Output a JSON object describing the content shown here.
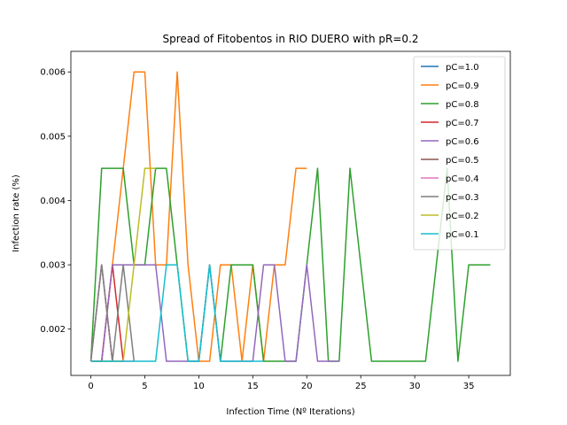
{
  "chart_data": {
    "type": "line",
    "title": "Spread of Fitobentos in RIO DUERO with pR=0.2",
    "xlabel": "Infection Time (Nº Iterations)",
    "ylabel": "Infection rate (%)",
    "xlim": [
      -1.85,
      38.85
    ],
    "ylim": [
      0.00128,
      0.00632
    ],
    "xticks": [
      0,
      5,
      10,
      15,
      20,
      25,
      30,
      35
    ],
    "yticks": [
      0.002,
      0.003,
      0.004,
      0.005,
      0.006
    ],
    "xtick_labels": [
      "0",
      "5",
      "10",
      "15",
      "20",
      "25",
      "30",
      "35"
    ],
    "ytick_labels": [
      "0.002",
      "0.003",
      "0.004",
      "0.005",
      "0.006"
    ],
    "grid": false,
    "legend_position": "upper right",
    "series": [
      {
        "name": "pC=1.0",
        "color": "#1f77b4",
        "x": [
          0,
          1,
          2,
          3
        ],
        "y": [
          0.0015,
          0.0015,
          0.0015,
          0.0015
        ]
      },
      {
        "name": "pC=0.9",
        "color": "#ff7f0e",
        "x": [
          0,
          1,
          2,
          3,
          4,
          5,
          6,
          7,
          8,
          9,
          10,
          11,
          12,
          13,
          14,
          15,
          16,
          17,
          18,
          19,
          20
        ],
        "y": [
          0.0015,
          0.0015,
          0.003,
          0.0045,
          0.006,
          0.006,
          0.003,
          0.003,
          0.006,
          0.003,
          0.0015,
          0.0015,
          0.003,
          0.003,
          0.0015,
          0.003,
          0.0015,
          0.003,
          0.003,
          0.0045,
          0.0045
        ]
      },
      {
        "name": "pC=0.8",
        "color": "#2ca02c",
        "x": [
          0,
          1,
          2,
          3,
          4,
          5,
          6,
          7,
          8,
          9,
          10,
          11,
          12,
          13,
          14,
          15,
          16,
          17,
          18,
          19,
          20,
          21,
          22,
          23,
          24,
          25,
          26,
          27,
          28,
          29,
          30,
          31,
          32,
          33,
          34,
          35,
          36,
          37
        ],
        "y": [
          0.0015,
          0.0045,
          0.0045,
          0.0045,
          0.003,
          0.003,
          0.0045,
          0.0045,
          0.003,
          0.0015,
          0.0015,
          0.003,
          0.0015,
          0.003,
          0.003,
          0.003,
          0.0015,
          0.0015,
          0.0015,
          0.0015,
          0.003,
          0.0045,
          0.0015,
          0.0015,
          0.0045,
          0.003,
          0.0015,
          0.0015,
          0.0015,
          0.0015,
          0.0015,
          0.0015,
          0.003,
          0.0045,
          0.0015,
          0.003,
          0.003,
          0.003
        ]
      },
      {
        "name": "pC=0.7",
        "color": "#d62728",
        "x": [
          0,
          1,
          2,
          3
        ],
        "y": [
          0.0015,
          0.0015,
          0.003,
          0.0015
        ]
      },
      {
        "name": "pC=0.6",
        "color": "#9467bd",
        "x": [
          0,
          1,
          2,
          3,
          4,
          5,
          6,
          7,
          8,
          9,
          10,
          11,
          12,
          13,
          14,
          15,
          16,
          17,
          18,
          19,
          20,
          21,
          22,
          23
        ],
        "y": [
          0.0015,
          0.0015,
          0.003,
          0.003,
          0.003,
          0.003,
          0.003,
          0.0015,
          0.0015,
          0.0015,
          0.0015,
          0.003,
          0.0015,
          0.0015,
          0.0015,
          0.0015,
          0.003,
          0.003,
          0.0015,
          0.0015,
          0.003,
          0.0015,
          0.0015,
          0.0015
        ]
      },
      {
        "name": "pC=0.5",
        "color": "#8c564b",
        "x": [
          0,
          1,
          2
        ],
        "y": [
          0.0015,
          0.003,
          0.0015
        ]
      },
      {
        "name": "pC=0.4",
        "color": "#e377c2",
        "x": [
          0,
          1,
          2,
          3,
          4
        ],
        "y": [
          0.0015,
          0.003,
          0.0015,
          0.0015,
          0.0015
        ]
      },
      {
        "name": "pC=0.3",
        "color": "#7f7f7f",
        "x": [
          0,
          1,
          2,
          3,
          4
        ],
        "y": [
          0.0015,
          0.003,
          0.0015,
          0.003,
          0.0015
        ]
      },
      {
        "name": "pC=0.2",
        "color": "#bcbd22",
        "x": [
          0,
          1,
          2,
          3,
          4,
          5,
          6
        ],
        "y": [
          0.0015,
          0.0015,
          0.0015,
          0.0015,
          0.003,
          0.0045,
          0.0045
        ]
      },
      {
        "name": "pC=0.1",
        "color": "#17becf",
        "x": [
          0,
          1,
          2,
          3,
          4,
          5,
          6,
          7,
          8,
          9,
          10,
          11,
          12,
          13,
          14,
          15,
          16
        ],
        "y": [
          0.0015,
          0.0015,
          0.0015,
          0.0015,
          0.0015,
          0.0015,
          0.0015,
          0.003,
          0.003,
          0.0015,
          0.0015,
          0.003,
          0.0015,
          0.0015,
          0.0015,
          0.0015,
          0.0015
        ]
      }
    ]
  }
}
